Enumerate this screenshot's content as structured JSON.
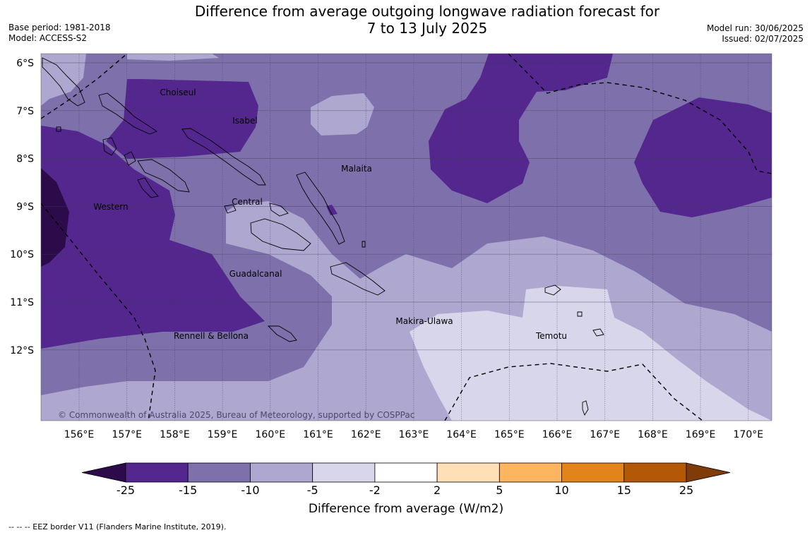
{
  "header": {
    "title_line1": "Difference from average outgoing longwave radiation forecast for",
    "title_line2": "7 to 13 July 2025",
    "base_period": "Base period: 1981-2018",
    "model": "Model: ACCESS-S2",
    "model_run": "Model run: 30/06/2025",
    "issued": "Issued: 02/07/2025"
  },
  "map": {
    "lat_labels": [
      "6°S",
      "7°S",
      "8°S",
      "9°S",
      "10°S",
      "11°S",
      "12°S"
    ],
    "lon_labels": [
      "156°E",
      "157°E",
      "158°E",
      "159°E",
      "160°E",
      "161°E",
      "162°E",
      "163°E",
      "164°E",
      "165°E",
      "166°E",
      "167°E",
      "168°E",
      "169°E",
      "170°E"
    ],
    "places": [
      "Choiseul",
      "Isabel",
      "Malaita",
      "Western",
      "Central",
      "Guadalcanal",
      "Rennell & Bellona",
      "Makira-Ulawa",
      "Temotu"
    ],
    "copyright": "© Commonwealth of Australia 2025, Bureau of Meteorology, supported by COSPPac"
  },
  "colorbar": {
    "title": "Difference from average (W/m2)",
    "ticks": [
      "-25",
      "-15",
      "-10",
      "-5",
      "-2",
      "2",
      "5",
      "10",
      "15",
      "25"
    ],
    "colors": [
      "#2d0a4a",
      "#54278f",
      "#7e71ab",
      "#aea7d0",
      "#d7d6ea",
      "#ffffff",
      "#ffe0b6",
      "#fdb55f",
      "#e2841a",
      "#b35806",
      "#7f3b08"
    ]
  },
  "footnote": "--  --  -- EEZ border V11 (Flanders Marine Institute, 2019)."
}
